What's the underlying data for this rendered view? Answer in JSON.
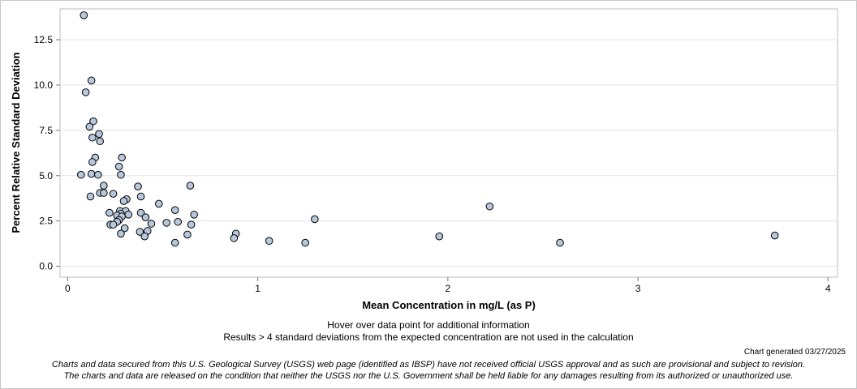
{
  "chart_data": {
    "type": "scatter",
    "xlabel": "Mean Concentration in mg/L (as P)",
    "ylabel": "Percent Relative Standard Deviation",
    "xlim": [
      -0.04,
      4.05
    ],
    "ylim": [
      -0.6,
      14.2
    ],
    "xticks": [
      0,
      1,
      2,
      3,
      4
    ],
    "xtick_labels": [
      "0",
      "1",
      "2",
      "3",
      "4"
    ],
    "yticks": [
      0.0,
      2.5,
      5.0,
      7.5,
      10.0,
      12.5
    ],
    "ytick_labels": [
      "0.0",
      "2.5",
      "5.0",
      "7.5",
      "10.0",
      "12.5"
    ],
    "grid": "horizontal",
    "point_color": "#b8c8dc",
    "point_edge": "#000000",
    "points": [
      {
        "x": 0.085,
        "y": 13.85
      },
      {
        "x": 0.125,
        "y": 10.25
      },
      {
        "x": 0.095,
        "y": 9.6
      },
      {
        "x": 0.135,
        "y": 8.0
      },
      {
        "x": 0.115,
        "y": 7.7
      },
      {
        "x": 0.165,
        "y": 7.3
      },
      {
        "x": 0.13,
        "y": 7.1
      },
      {
        "x": 0.17,
        "y": 6.9
      },
      {
        "x": 0.145,
        "y": 6.0
      },
      {
        "x": 0.285,
        "y": 6.0
      },
      {
        "x": 0.13,
        "y": 5.75
      },
      {
        "x": 0.27,
        "y": 5.5
      },
      {
        "x": 0.07,
        "y": 5.05
      },
      {
        "x": 0.125,
        "y": 5.1
      },
      {
        "x": 0.16,
        "y": 5.05
      },
      {
        "x": 0.28,
        "y": 5.05
      },
      {
        "x": 0.19,
        "y": 4.45
      },
      {
        "x": 0.37,
        "y": 4.4
      },
      {
        "x": 0.645,
        "y": 4.45
      },
      {
        "x": 0.17,
        "y": 4.05
      },
      {
        "x": 0.19,
        "y": 4.05
      },
      {
        "x": 0.24,
        "y": 4.0
      },
      {
        "x": 0.12,
        "y": 3.85
      },
      {
        "x": 0.385,
        "y": 3.85
      },
      {
        "x": 0.31,
        "y": 3.7
      },
      {
        "x": 0.295,
        "y": 3.6
      },
      {
        "x": 0.48,
        "y": 3.45
      },
      {
        "x": 0.565,
        "y": 3.1
      },
      {
        "x": 0.275,
        "y": 3.05
      },
      {
        "x": 0.305,
        "y": 3.05
      },
      {
        "x": 0.22,
        "y": 2.95
      },
      {
        "x": 0.28,
        "y": 2.9
      },
      {
        "x": 0.385,
        "y": 2.95
      },
      {
        "x": 0.665,
        "y": 2.85
      },
      {
        "x": 0.26,
        "y": 2.8
      },
      {
        "x": 0.32,
        "y": 2.85
      },
      {
        "x": 0.285,
        "y": 2.75
      },
      {
        "x": 0.41,
        "y": 2.7
      },
      {
        "x": 0.27,
        "y": 2.55
      },
      {
        "x": 1.3,
        "y": 2.6
      },
      {
        "x": 0.26,
        "y": 2.45
      },
      {
        "x": 0.52,
        "y": 2.4
      },
      {
        "x": 0.58,
        "y": 2.45
      },
      {
        "x": 0.44,
        "y": 2.35
      },
      {
        "x": 0.65,
        "y": 2.3
      },
      {
        "x": 0.225,
        "y": 2.3
      },
      {
        "x": 0.24,
        "y": 2.3
      },
      {
        "x": 0.3,
        "y": 2.1
      },
      {
        "x": 0.42,
        "y": 1.95
      },
      {
        "x": 0.38,
        "y": 1.9
      },
      {
        "x": 0.28,
        "y": 1.8
      },
      {
        "x": 0.63,
        "y": 1.75
      },
      {
        "x": 0.885,
        "y": 1.8
      },
      {
        "x": 0.405,
        "y": 1.65
      },
      {
        "x": 0.875,
        "y": 1.55
      },
      {
        "x": 1.06,
        "y": 1.4
      },
      {
        "x": 0.565,
        "y": 1.3
      },
      {
        "x": 1.25,
        "y": 1.3
      },
      {
        "x": 1.955,
        "y": 1.65
      },
      {
        "x": 2.22,
        "y": 3.3
      },
      {
        "x": 2.59,
        "y": 1.3
      },
      {
        "x": 3.72,
        "y": 1.7
      }
    ]
  },
  "notes": {
    "hover": "Hover over data point for additional information",
    "results": "Results > 4 standard deviations from the expected concentration are not used in the calculation"
  },
  "generated": "Chart generated 03/27/2025",
  "disclaimer": {
    "line1": "Charts and data secured from this U.S. Geological Survey (USGS) web page (identified as IBSP) have not received official USGS approval and as such are provisional and subject to revision.",
    "line2": "The charts and data are released on the condition that neither the USGS nor the U.S. Government shall be held liable for any damages resulting from its authorized or unauthorized use."
  }
}
